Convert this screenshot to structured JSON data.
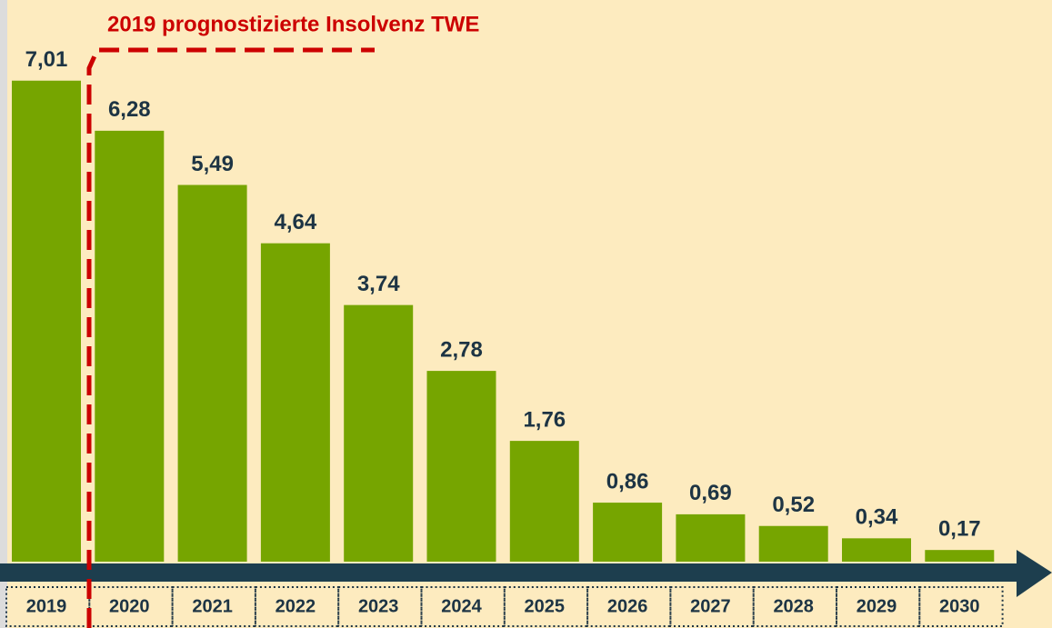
{
  "chart_data": {
    "type": "bar",
    "annotation": "2019 prognostizierte Insolvenz TWE",
    "categories": [
      "2019",
      "2020",
      "2021",
      "2022",
      "2023",
      "2024",
      "2025",
      "2026",
      "2027",
      "2028",
      "2029",
      "2030"
    ],
    "values": [
      7.01,
      6.28,
      5.49,
      4.64,
      3.74,
      2.78,
      1.76,
      0.86,
      0.69,
      0.52,
      0.34,
      0.17
    ],
    "value_labels": [
      "7,01",
      "6,28",
      "5,49",
      "4,64",
      "3,74",
      "2,78",
      "1,76",
      "0,86",
      "0,69",
      "0,52",
      "0,34",
      "0,17"
    ],
    "color": "#76a500"
  }
}
